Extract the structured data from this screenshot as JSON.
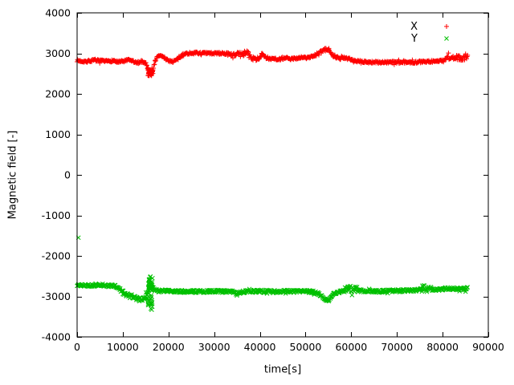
{
  "chart_data": {
    "type": "scatter",
    "title": "",
    "xlabel": "time[s]",
    "ylabel": "Magnetic field [-]",
    "xlim": [
      0,
      90000
    ],
    "ylim": [
      -4000,
      4000
    ],
    "xticks": [
      0,
      10000,
      20000,
      30000,
      40000,
      50000,
      60000,
      70000,
      80000,
      90000
    ],
    "yticks": [
      -4000,
      -3000,
      -2000,
      -1000,
      0,
      1000,
      2000,
      3000,
      4000
    ],
    "grid": false,
    "legend_position": "top-right",
    "sample_step": 110,
    "series": [
      {
        "name": "X",
        "color": "#ff0000",
        "marker": "plus",
        "x_end": 85500,
        "noise": 28,
        "noise_regions": [
          {
            "from": 33000,
            "to": 42000,
            "amp": 42
          },
          {
            "from": 52000,
            "to": 57000,
            "amp": 38
          },
          {
            "from": 80000,
            "to": 85500,
            "amp": 55
          }
        ],
        "anchors": [
          [
            0,
            2820
          ],
          [
            2000,
            2800
          ],
          [
            4000,
            2830
          ],
          [
            6000,
            2800
          ],
          [
            8000,
            2820
          ],
          [
            9000,
            2780
          ],
          [
            10000,
            2800
          ],
          [
            11000,
            2830
          ],
          [
            12000,
            2820
          ],
          [
            13000,
            2760
          ],
          [
            14000,
            2800
          ],
          [
            15000,
            2780
          ],
          [
            15500,
            2620
          ],
          [
            16000,
            2500
          ],
          [
            16500,
            2560
          ],
          [
            17000,
            2780
          ],
          [
            17500,
            2900
          ],
          [
            18000,
            2950
          ],
          [
            19000,
            2900
          ],
          [
            20000,
            2820
          ],
          [
            21000,
            2800
          ],
          [
            22000,
            2850
          ],
          [
            23000,
            2950
          ],
          [
            24000,
            3000
          ],
          [
            26000,
            3010
          ],
          [
            28000,
            3000
          ],
          [
            30000,
            3000
          ],
          [
            32000,
            3000
          ],
          [
            33000,
            2990
          ],
          [
            34000,
            2950
          ],
          [
            35000,
            2980
          ],
          [
            36000,
            3000
          ],
          [
            36500,
            2950
          ],
          [
            37000,
            3050
          ],
          [
            37500,
            3000
          ],
          [
            38000,
            2900
          ],
          [
            39000,
            2850
          ],
          [
            40000,
            2900
          ],
          [
            40500,
            2980
          ],
          [
            41000,
            2900
          ],
          [
            42000,
            2870
          ],
          [
            43000,
            2880
          ],
          [
            44000,
            2850
          ],
          [
            45000,
            2870
          ],
          [
            46000,
            2880
          ],
          [
            47000,
            2860
          ],
          [
            48000,
            2880
          ],
          [
            49000,
            2900
          ],
          [
            50000,
            2890
          ],
          [
            51000,
            2900
          ],
          [
            52000,
            2950
          ],
          [
            53000,
            3000
          ],
          [
            54000,
            3080
          ],
          [
            55000,
            3100
          ],
          [
            55500,
            3050
          ],
          [
            56000,
            2950
          ],
          [
            57000,
            2900
          ],
          [
            57500,
            2850
          ],
          [
            58000,
            2900
          ],
          [
            59000,
            2870
          ],
          [
            60000,
            2850
          ],
          [
            61000,
            2820
          ],
          [
            62000,
            2800
          ],
          [
            63000,
            2790
          ],
          [
            64000,
            2780
          ],
          [
            66000,
            2780
          ],
          [
            68000,
            2780
          ],
          [
            70000,
            2780
          ],
          [
            72000,
            2780
          ],
          [
            74000,
            2780
          ],
          [
            76000,
            2800
          ],
          [
            78000,
            2800
          ],
          [
            80000,
            2820
          ],
          [
            81000,
            2900
          ],
          [
            82000,
            2870
          ],
          [
            83000,
            2900
          ],
          [
            84000,
            2880
          ],
          [
            85500,
            2900
          ]
        ],
        "bursts": [
          {
            "x": 16100,
            "xspread": 600,
            "ymin": 2440,
            "ymax": 2660,
            "count": 35
          }
        ],
        "outliers": []
      },
      {
        "name": "Y",
        "color": "#00c000",
        "marker": "cross",
        "x_end": 85500,
        "noise": 34,
        "noise_regions": [
          {
            "from": 10000,
            "to": 15200,
            "amp": 55
          },
          {
            "from": 58500,
            "to": 61500,
            "amp": 80
          },
          {
            "from": 75500,
            "to": 77500,
            "amp": 65
          }
        ],
        "anchors": [
          [
            0,
            -2720
          ],
          [
            2000,
            -2730
          ],
          [
            4000,
            -2720
          ],
          [
            6000,
            -2730
          ],
          [
            8000,
            -2740
          ],
          [
            9000,
            -2780
          ],
          [
            10000,
            -2900
          ],
          [
            11000,
            -2980
          ],
          [
            12000,
            -3000
          ],
          [
            13000,
            -3050
          ],
          [
            13500,
            -3100
          ],
          [
            14000,
            -3050
          ],
          [
            14500,
            -3080
          ],
          [
            15000,
            -3000
          ],
          [
            15500,
            -2900
          ],
          [
            16000,
            -2750
          ],
          [
            16600,
            -2800
          ],
          [
            17000,
            -2850
          ],
          [
            18000,
            -2870
          ],
          [
            19000,
            -2860
          ],
          [
            20000,
            -2870
          ],
          [
            22000,
            -2870
          ],
          [
            24000,
            -2880
          ],
          [
            26000,
            -2880
          ],
          [
            28000,
            -2880
          ],
          [
            30000,
            -2870
          ],
          [
            32000,
            -2880
          ],
          [
            34000,
            -2890
          ],
          [
            35000,
            -2950
          ],
          [
            36000,
            -2900
          ],
          [
            37000,
            -2880
          ],
          [
            38000,
            -2870
          ],
          [
            40000,
            -2880
          ],
          [
            42000,
            -2870
          ],
          [
            43000,
            -2900
          ],
          [
            44000,
            -2880
          ],
          [
            46000,
            -2870
          ],
          [
            48000,
            -2880
          ],
          [
            50000,
            -2870
          ],
          [
            52000,
            -2900
          ],
          [
            53000,
            -2950
          ],
          [
            54000,
            -3050
          ],
          [
            55000,
            -3100
          ],
          [
            55500,
            -3050
          ],
          [
            56000,
            -2950
          ],
          [
            57000,
            -2900
          ],
          [
            58000,
            -2870
          ],
          [
            59000,
            -2850
          ],
          [
            60000,
            -2800
          ],
          [
            60500,
            -2870
          ],
          [
            61000,
            -2820
          ],
          [
            62000,
            -2850
          ],
          [
            63000,
            -2870
          ],
          [
            64000,
            -2870
          ],
          [
            66000,
            -2870
          ],
          [
            68000,
            -2870
          ],
          [
            70000,
            -2860
          ],
          [
            72000,
            -2860
          ],
          [
            74000,
            -2850
          ],
          [
            75000,
            -2830
          ],
          [
            76000,
            -2780
          ],
          [
            76500,
            -2850
          ],
          [
            77000,
            -2820
          ],
          [
            78000,
            -2830
          ],
          [
            80000,
            -2830
          ],
          [
            81000,
            -2800
          ],
          [
            82000,
            -2820
          ],
          [
            83000,
            -2810
          ],
          [
            84000,
            -2820
          ],
          [
            85500,
            -2800
          ]
        ],
        "bursts": [
          {
            "x": 16000,
            "xspread": 500,
            "ymin": -3350,
            "ymax": -2480,
            "count": 45
          }
        ],
        "outliers": [
          [
            300,
            -1550
          ]
        ]
      }
    ]
  }
}
